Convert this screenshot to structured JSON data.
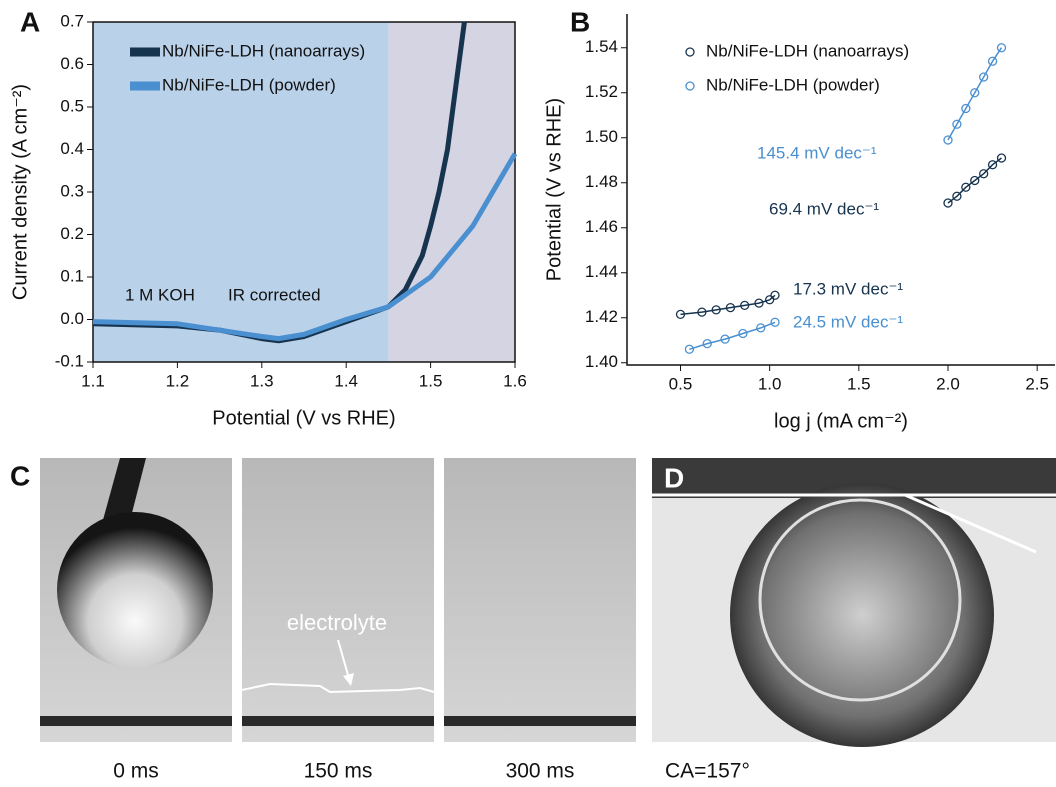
{
  "chart_data": [
    {
      "type": "line",
      "panel_label": "A",
      "x_label": "Potential (V vs RHE)",
      "y_label": "Current density (A cm⁻²)",
      "xlim": [
        1.1,
        1.6
      ],
      "ylim": [
        -0.1,
        0.7
      ],
      "xticks": [
        1.1,
        1.2,
        1.3,
        1.4,
        1.5,
        1.6
      ],
      "yticks": [
        -0.1,
        {
          "value": 0,
          "label": "0.0"
        },
        0.1,
        0.2,
        0.3,
        0.4,
        0.5,
        0.6,
        0.7
      ],
      "regions": [
        {
          "xlim": [
            1.1,
            1.45
          ],
          "color": "#b9d1e9"
        },
        {
          "xlim": [
            1.45,
            1.6
          ],
          "color": "#d4d4e2"
        }
      ],
      "annotations": [
        "1 M KOH",
        "IR corrected"
      ],
      "series": [
        {
          "name": "Nb/NiFe-LDH (nanoarrays)",
          "color": "#17344f",
          "x": [
            1.1,
            1.2,
            1.25,
            1.3,
            1.32,
            1.35,
            1.4,
            1.45,
            1.47,
            1.49,
            1.5,
            1.51,
            1.52,
            1.53,
            1.54
          ],
          "values": [
            -0.01,
            -0.015,
            -0.025,
            -0.045,
            -0.05,
            -0.04,
            -0.005,
            0.03,
            0.07,
            0.15,
            0.22,
            0.3,
            0.4,
            0.55,
            0.7
          ]
        },
        {
          "name": "Nb/NiFe-LDH (powder)",
          "color": "#4a8fd0",
          "x": [
            1.1,
            1.2,
            1.3,
            1.32,
            1.35,
            1.4,
            1.45,
            1.5,
            1.55,
            1.6
          ],
          "values": [
            -0.005,
            -0.01,
            -0.04,
            -0.045,
            -0.035,
            0,
            0.03,
            0.1,
            0.22,
            0.39
          ]
        }
      ]
    },
    {
      "type": "scatter",
      "panel_label": "B",
      "x_label": "log j (mA cm⁻²)",
      "y_label": "Potential (V vs RHE)",
      "xlim": [
        0.2,
        2.6
      ],
      "ylim": [
        1.399,
        1.555
      ],
      "xticks": [
        0.5,
        {
          "value": 1,
          "label": "1.0"
        },
        1.5,
        {
          "value": 2,
          "label": "2.0"
        },
        2.5
      ],
      "yticks": [
        {
          "value": 1.4,
          "label": "1.40"
        },
        1.42,
        1.44,
        1.46,
        1.48,
        {
          "value": 1.5,
          "label": "1.50"
        },
        1.52,
        1.54
      ],
      "annotations": [
        {
          "text": "145.4 mV dec⁻¹",
          "color": "#4a8fd0"
        },
        {
          "text": "69.4 mV dec⁻¹",
          "color": "#17344f"
        },
        {
          "text": "17.3 mV dec⁻¹",
          "color": "#17344f"
        },
        {
          "text": "24.5 mV dec⁻¹",
          "color": "#4a8fd0"
        }
      ],
      "series": [
        {
          "name": "Nb/NiFe-LDH (nanoarrays)",
          "color": "#17344f",
          "x": [
            0.5,
            0.62,
            0.7,
            0.78,
            0.86,
            0.94,
            1.0,
            1.03,
            null,
            2.0,
            2.05,
            2.1,
            2.15,
            2.2,
            2.25,
            2.3
          ],
          "values": [
            1.4215,
            1.4225,
            1.4235,
            1.4245,
            1.4255,
            1.4265,
            1.428,
            1.43,
            null,
            1.471,
            1.474,
            1.478,
            1.481,
            1.484,
            1.488,
            1.491
          ]
        },
        {
          "name": "Nb/NiFe-LDH (powder)",
          "color": "#4a8fd0",
          "x": [
            0.55,
            0.65,
            0.75,
            0.85,
            0.95,
            1.03,
            null,
            2.0,
            2.05,
            2.1,
            2.15,
            2.2,
            2.25,
            2.3
          ],
          "values": [
            1.406,
            1.4085,
            1.4105,
            1.413,
            1.4155,
            1.418,
            null,
            1.499,
            1.506,
            1.513,
            1.52,
            1.527,
            1.534,
            1.54
          ]
        }
      ]
    }
  ],
  "photos": {
    "c": {
      "label": "C",
      "captions": [
        "0 ms",
        "150 ms",
        "300 ms"
      ],
      "annotation": "electrolyte"
    },
    "d": {
      "label": "D",
      "caption": "CA=157°"
    }
  }
}
